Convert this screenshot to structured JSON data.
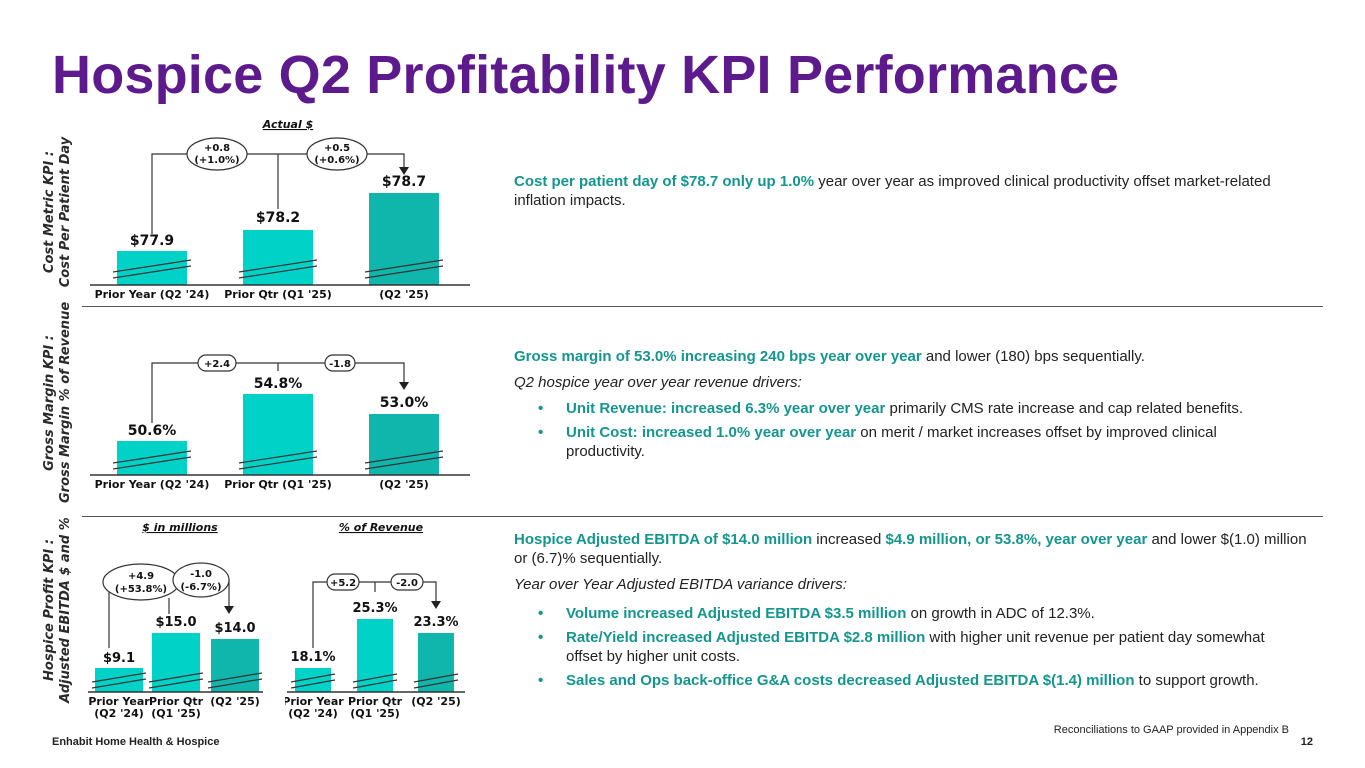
{
  "title": "Hospice Q2 Profitability KPI Performance",
  "colors": {
    "bar_light": "#00d2c8",
    "bar_dark": "#10b5ab",
    "title": "#5c1a8c",
    "highlight": "#14968f"
  },
  "panel1": {
    "side_label_1": "Cost Metric KPI :",
    "side_label_2": "Cost Per Patient Day",
    "header": "Actual $",
    "bar_labels": [
      "$77.9",
      "$78.2",
      "$78.7"
    ],
    "categories": [
      "Prior Year (Q2 '24)",
      "Prior Qtr (Q1 '25)",
      "(Q2 '25)"
    ],
    "pill1_line1": "+0.8",
    "pill1_line2": "(+1.0%)",
    "pill2_line1": "+0.5",
    "pill2_line2": "(+0.6%)",
    "text_hl": "Cost per patient day of $78.7 only up 1.0%",
    "text_rest": " year over year as improved clinical productivity offset market-related inflation impacts."
  },
  "panel2": {
    "side_label_1": "Gross Margin KPI :",
    "side_label_2": "Gross Margin % of Revenue",
    "bar_labels": [
      "50.6%",
      "54.8%",
      "53.0%"
    ],
    "categories": [
      "Prior Year (Q2 '24)",
      "Prior Qtr (Q1 '25)",
      "(Q2 '25)"
    ],
    "pill1": "+2.4",
    "pill2": "-1.8",
    "p1_hl": "Gross margin of 53.0% increasing 240 bps year over year",
    "p1_rest": " and lower (180) bps sequentially.",
    "p2": "Q2 hospice year over year revenue drivers:",
    "b1_hl": "Unit Revenue: increased 6.3% year over year",
    "b1_rest": " primarily CMS rate increase and cap related benefits.",
    "b2_hl": "Unit Cost: increased 1.0% year over year",
    "b2_rest": " on merit / market increases offset by improved clinical productivity."
  },
  "panel3": {
    "side_label_1": "Hospice Profit KPI :",
    "side_label_2": "Adjusted EBITDA $ and %",
    "header_left": "$ in millions",
    "header_right": "% of Revenue",
    "left_bar_labels": [
      "$9.1",
      "$15.0",
      "$14.0"
    ],
    "right_bar_labels": [
      "18.1%",
      "25.3%",
      "23.3%"
    ],
    "cat_top": [
      "Prior Year",
      "Prior Qtr",
      "(Q2 '25)"
    ],
    "cat_bottom": [
      "(Q2 '24)",
      "(Q1 '25)"
    ],
    "lpill1_line1": "+4.9",
    "lpill1_line2": "(+53.8%)",
    "lpill2_line1": "-1.0",
    "lpill2_line2": "(-6.7%)",
    "rpill1": "+5.2",
    "rpill2": "-2.0",
    "p1_hl1": "Hospice Adjusted EBITDA of $14.0 million",
    "p1_mid": " increased ",
    "p1_hl2": "$4.9 million, or 53.8%, year over year",
    "p1_rest": " and lower $(1.0) million or (6.7)% sequentially.",
    "p2": "Year over Year Adjusted EBITDA variance drivers:",
    "b1_hl": "Volume increased Adjusted EBITDA $3.5 million",
    "b1_rest": " on growth in ADC of 12.3%.",
    "b2_hl": "Rate/Yield increased Adjusted EBITDA $2.8 million",
    "b2_rest": " with higher unit revenue per patient day somewhat offset by higher unit costs.",
    "b3_hl": "Sales and Ops back-office G&A costs decreased Adjusted EBITDA $(1.4) million",
    "b3_rest": " to support growth."
  },
  "footer": {
    "company": "Enhabit Home Health & Hospice",
    "note": "Reconciliations to GAAP provided in Appendix B",
    "page": "12"
  }
}
